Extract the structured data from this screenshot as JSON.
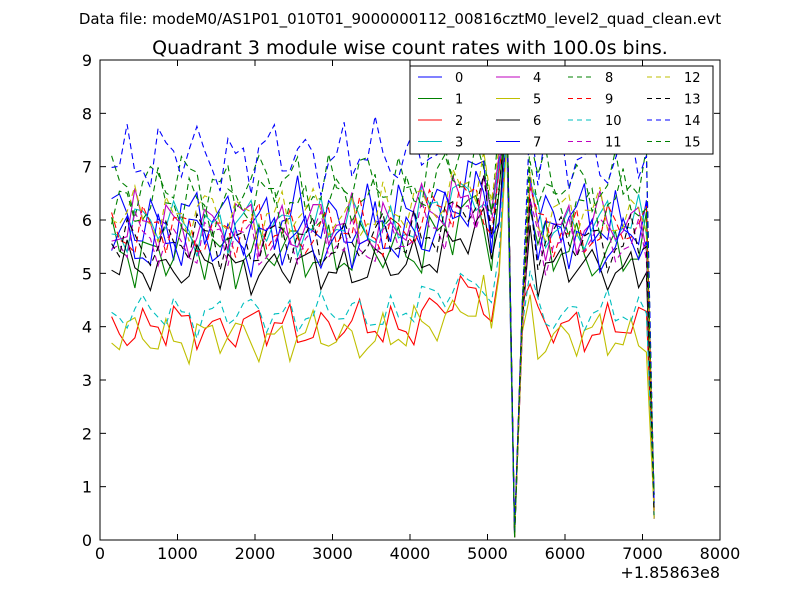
{
  "suptitle": "Data file: modeM0/AS1P01_010T01_9000000112_00816cztM0_level2_quad_clean.evt",
  "chart_data": {
    "type": "line",
    "title": "Quadrant 3 module wise count rates with 100.0s bins.",
    "xlabel": "",
    "ylabel": "",
    "x_offset_label": "+1.85863e8",
    "xlim": [
      0,
      8000
    ],
    "ylim": [
      0,
      9
    ],
    "xticks": [
      0,
      1000,
      2000,
      3000,
      4000,
      5000,
      6000,
      7000,
      8000
    ],
    "yticks": [
      0,
      1,
      2,
      3,
      4,
      5,
      6,
      7,
      8,
      9
    ],
    "legend_position": "top-right",
    "legend_columns": 4,
    "x_start": 150,
    "x_step": 100,
    "n_points": 71,
    "grid": false,
    "series": [
      {
        "name": "0",
        "color": "#0000ff",
        "dash": "solid",
        "base": 6.0,
        "amp": 0.45,
        "phase": 0.3
      },
      {
        "name": "1",
        "color": "#008000",
        "dash": "solid",
        "base": 5.4,
        "amp": 0.4,
        "phase": 1.1
      },
      {
        "name": "2",
        "color": "#ff0000",
        "dash": "solid",
        "base": 4.0,
        "amp": 0.3,
        "phase": 2.0
      },
      {
        "name": "3",
        "color": "#00bfbf",
        "dash": "solid",
        "base": 5.9,
        "amp": 0.35,
        "phase": 2.7
      },
      {
        "name": "4",
        "color": "#bf00bf",
        "dash": "solid",
        "base": 5.9,
        "amp": 0.4,
        "phase": 3.4
      },
      {
        "name": "5",
        "color": "#bfbf00",
        "dash": "solid",
        "base": 3.8,
        "amp": 0.3,
        "phase": 4.1
      },
      {
        "name": "6",
        "color": "#000000",
        "dash": "solid",
        "base": 5.1,
        "amp": 0.3,
        "phase": 4.8
      },
      {
        "name": "7",
        "color": "#0000ff",
        "dash": "solid",
        "base": 5.6,
        "amp": 0.4,
        "phase": 5.5
      },
      {
        "name": "8",
        "color": "#008000",
        "dash": "dashed",
        "base": 6.7,
        "amp": 0.4,
        "phase": 0.8
      },
      {
        "name": "9",
        "color": "#ff0000",
        "dash": "dashed",
        "base": 5.8,
        "amp": 0.35,
        "phase": 1.6
      },
      {
        "name": "10",
        "color": "#00bfbf",
        "dash": "dashed",
        "base": 4.25,
        "amp": 0.25,
        "phase": 2.3
      },
      {
        "name": "11",
        "color": "#bf00bf",
        "dash": "dashed",
        "base": 5.6,
        "amp": 0.35,
        "phase": 3.0
      },
      {
        "name": "12",
        "color": "#bfbf00",
        "dash": "dashed",
        "base": 6.1,
        "amp": 0.35,
        "phase": 3.7
      },
      {
        "name": "13",
        "color": "#000000",
        "dash": "dashed",
        "base": 5.6,
        "amp": 0.35,
        "phase": 4.4
      },
      {
        "name": "14",
        "color": "#0000ff",
        "dash": "dashed",
        "base": 7.2,
        "amp": 0.45,
        "phase": 5.1
      },
      {
        "name": "15",
        "color": "#008000",
        "dash": "dashed",
        "base": 6.3,
        "amp": 0.4,
        "phase": 5.8
      }
    ]
  }
}
